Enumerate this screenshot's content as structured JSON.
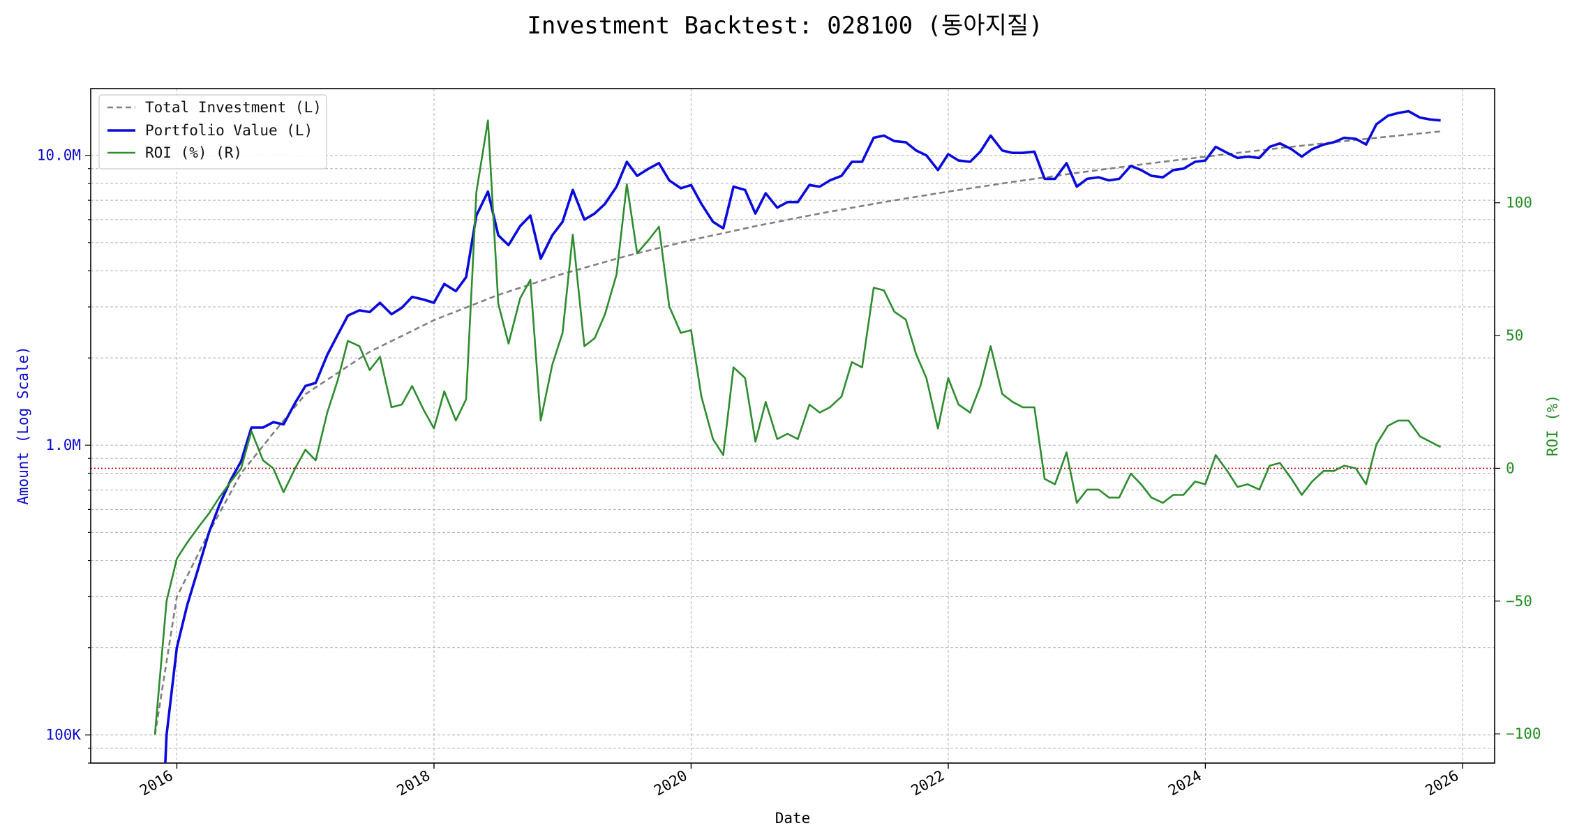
{
  "chart_data": {
    "type": "line",
    "title": "Investment Backtest: 028100 (동아지질)",
    "xlabel": "Date",
    "ylabel_left": "Amount (Log Scale)",
    "ylabel_right": "ROI (%)",
    "x_range": [
      2015.33,
      2026.25
    ],
    "left_axis": {
      "scale": "log",
      "range": [
        80000,
        17000000
      ],
      "tick_values": [
        100000,
        1000000,
        10000000
      ],
      "tick_labels": [
        "100K",
        "1.0M",
        "10.0M"
      ]
    },
    "right_axis": {
      "scale": "linear",
      "range": [
        -111,
        143
      ],
      "ticks": [
        -100,
        -50,
        0,
        50,
        100
      ],
      "tick_labels": [
        "−100",
        "−50",
        "0",
        "50",
        "100"
      ]
    },
    "x_ticks": [
      2016,
      2018,
      2020,
      2022,
      2024,
      2026
    ],
    "x_tick_labels": [
      "2016",
      "2018",
      "2020",
      "2022",
      "2024",
      "2026"
    ],
    "grid": true,
    "legend_position": "top-left",
    "reference_line": {
      "axis": "right",
      "value": 0,
      "style": "dotted",
      "color": "#cc0000"
    },
    "colors": {
      "investment": "#808080",
      "portfolio": "#0a0adc",
      "roi": "#2e8b2e",
      "left_axis": "#0a0acc",
      "right_axis": "#228b22"
    },
    "series": [
      {
        "name": "Total Investment (L)",
        "axis": "left",
        "style": "dashed",
        "points": [
          [
            2015.83,
            100000
          ],
          [
            2016.0,
            300000
          ],
          [
            2016.25,
            500000
          ],
          [
            2016.5,
            800000
          ],
          [
            2016.75,
            1100000
          ],
          [
            2017.0,
            1500000
          ],
          [
            2017.5,
            2100000
          ],
          [
            2018.0,
            2700000
          ],
          [
            2018.5,
            3300000
          ],
          [
            2019.0,
            3900000
          ],
          [
            2019.5,
            4500000
          ],
          [
            2020.0,
            5100000
          ],
          [
            2020.5,
            5700000
          ],
          [
            2021.0,
            6300000
          ],
          [
            2021.5,
            6900000
          ],
          [
            2022.0,
            7500000
          ],
          [
            2022.5,
            8100000
          ],
          [
            2023.0,
            8700000
          ],
          [
            2023.5,
            9300000
          ],
          [
            2024.0,
            9900000
          ],
          [
            2024.5,
            10500000
          ],
          [
            2025.0,
            11100000
          ],
          [
            2025.5,
            11700000
          ],
          [
            2025.83,
            12100000
          ]
        ]
      },
      {
        "name": "Portfolio Value (L)",
        "axis": "left",
        "style": "solid",
        "points": [
          [
            2015.91,
            60000
          ],
          [
            2015.92,
            100000
          ],
          [
            2016.0,
            200000
          ],
          [
            2016.08,
            280000
          ],
          [
            2016.17,
            380000
          ],
          [
            2016.25,
            500000
          ],
          [
            2016.33,
            620000
          ],
          [
            2016.42,
            760000
          ],
          [
            2016.5,
            880000
          ],
          [
            2016.58,
            1150000
          ],
          [
            2016.67,
            1150000
          ],
          [
            2016.75,
            1200000
          ],
          [
            2016.83,
            1180000
          ],
          [
            2016.92,
            1400000
          ],
          [
            2017.0,
            1600000
          ],
          [
            2017.08,
            1640000
          ],
          [
            2017.17,
            2050000
          ],
          [
            2017.25,
            2400000
          ],
          [
            2017.33,
            2800000
          ],
          [
            2017.42,
            2920000
          ],
          [
            2017.5,
            2880000
          ],
          [
            2017.58,
            3100000
          ],
          [
            2017.67,
            2830000
          ],
          [
            2017.75,
            2980000
          ],
          [
            2017.83,
            3250000
          ],
          [
            2017.92,
            3180000
          ],
          [
            2018.0,
            3100000
          ],
          [
            2018.08,
            3600000
          ],
          [
            2018.17,
            3400000
          ],
          [
            2018.25,
            3800000
          ],
          [
            2018.33,
            6200000
          ],
          [
            2018.42,
            7500000
          ],
          [
            2018.5,
            5300000
          ],
          [
            2018.58,
            4900000
          ],
          [
            2018.67,
            5700000
          ],
          [
            2018.75,
            6200000
          ],
          [
            2018.83,
            4400000
          ],
          [
            2018.92,
            5300000
          ],
          [
            2019.0,
            5900000
          ],
          [
            2019.08,
            7600000
          ],
          [
            2019.17,
            6000000
          ],
          [
            2019.25,
            6300000
          ],
          [
            2019.33,
            6800000
          ],
          [
            2019.42,
            7800000
          ],
          [
            2019.5,
            9500000
          ],
          [
            2019.58,
            8500000
          ],
          [
            2019.67,
            9000000
          ],
          [
            2019.75,
            9400000
          ],
          [
            2019.83,
            8200000
          ],
          [
            2019.92,
            7700000
          ],
          [
            2020.0,
            7900000
          ],
          [
            2020.08,
            6800000
          ],
          [
            2020.17,
            5900000
          ],
          [
            2020.25,
            5600000
          ],
          [
            2020.33,
            7800000
          ],
          [
            2020.42,
            7600000
          ],
          [
            2020.5,
            6300000
          ],
          [
            2020.58,
            7400000
          ],
          [
            2020.67,
            6600000
          ],
          [
            2020.75,
            6900000
          ],
          [
            2020.83,
            6900000
          ],
          [
            2020.92,
            7900000
          ],
          [
            2021.0,
            7800000
          ],
          [
            2021.08,
            8200000
          ],
          [
            2021.17,
            8500000
          ],
          [
            2021.25,
            9500000
          ],
          [
            2021.33,
            9500000
          ],
          [
            2021.42,
            11500000
          ],
          [
            2021.5,
            11700000
          ],
          [
            2021.58,
            11200000
          ],
          [
            2021.67,
            11100000
          ],
          [
            2021.75,
            10400000
          ],
          [
            2021.83,
            10000000
          ],
          [
            2021.92,
            8900000
          ],
          [
            2022.0,
            10100000
          ],
          [
            2022.08,
            9600000
          ],
          [
            2022.17,
            9500000
          ],
          [
            2022.25,
            10300000
          ],
          [
            2022.33,
            11700000
          ],
          [
            2022.42,
            10400000
          ],
          [
            2022.5,
            10200000
          ],
          [
            2022.58,
            10200000
          ],
          [
            2022.67,
            10300000
          ],
          [
            2022.75,
            8300000
          ],
          [
            2022.83,
            8300000
          ],
          [
            2022.92,
            9400000
          ],
          [
            2023.0,
            7800000
          ],
          [
            2023.08,
            8300000
          ],
          [
            2023.17,
            8400000
          ],
          [
            2023.25,
            8200000
          ],
          [
            2023.33,
            8300000
          ],
          [
            2023.42,
            9200000
          ],
          [
            2023.5,
            8900000
          ],
          [
            2023.58,
            8500000
          ],
          [
            2023.67,
            8400000
          ],
          [
            2023.75,
            8900000
          ],
          [
            2023.83,
            9000000
          ],
          [
            2023.92,
            9500000
          ],
          [
            2024.0,
            9600000
          ],
          [
            2024.08,
            10700000
          ],
          [
            2024.17,
            10200000
          ],
          [
            2024.25,
            9800000
          ],
          [
            2024.33,
            9900000
          ],
          [
            2024.42,
            9800000
          ],
          [
            2024.5,
            10700000
          ],
          [
            2024.58,
            11000000
          ],
          [
            2024.67,
            10500000
          ],
          [
            2024.75,
            9900000
          ],
          [
            2024.83,
            10500000
          ],
          [
            2024.92,
            10900000
          ],
          [
            2025.0,
            11100000
          ],
          [
            2025.08,
            11500000
          ],
          [
            2025.17,
            11400000
          ],
          [
            2025.25,
            10900000
          ],
          [
            2025.33,
            12800000
          ],
          [
            2025.42,
            13700000
          ],
          [
            2025.5,
            14000000
          ],
          [
            2025.58,
            14200000
          ],
          [
            2025.67,
            13500000
          ],
          [
            2025.75,
            13300000
          ],
          [
            2025.83,
            13200000
          ]
        ]
      },
      {
        "name": "ROI (%) (R)",
        "axis": "right",
        "style": "solid",
        "points": [
          [
            2015.83,
            -100
          ],
          [
            2015.92,
            -50
          ],
          [
            2016.0,
            -34
          ],
          [
            2016.08,
            -28
          ],
          [
            2016.17,
            -22
          ],
          [
            2016.25,
            -17
          ],
          [
            2016.33,
            -11
          ],
          [
            2016.42,
            -5
          ],
          [
            2016.5,
            0
          ],
          [
            2016.58,
            14
          ],
          [
            2016.67,
            3
          ],
          [
            2016.75,
            0
          ],
          [
            2016.83,
            -9
          ],
          [
            2016.92,
            0
          ],
          [
            2017.0,
            7
          ],
          [
            2017.08,
            3
          ],
          [
            2017.17,
            21
          ],
          [
            2017.25,
            33
          ],
          [
            2017.33,
            48
          ],
          [
            2017.42,
            46
          ],
          [
            2017.5,
            37
          ],
          [
            2017.58,
            42
          ],
          [
            2017.67,
            23
          ],
          [
            2017.75,
            24
          ],
          [
            2017.83,
            31
          ],
          [
            2017.92,
            22
          ],
          [
            2018.0,
            15
          ],
          [
            2018.08,
            29
          ],
          [
            2018.17,
            18
          ],
          [
            2018.25,
            26
          ],
          [
            2018.33,
            104
          ],
          [
            2018.42,
            131
          ],
          [
            2018.5,
            62
          ],
          [
            2018.58,
            47
          ],
          [
            2018.67,
            64
          ],
          [
            2018.75,
            71
          ],
          [
            2018.83,
            18
          ],
          [
            2018.92,
            39
          ],
          [
            2019.0,
            51
          ],
          [
            2019.08,
            88
          ],
          [
            2019.17,
            46
          ],
          [
            2019.25,
            49
          ],
          [
            2019.33,
            58
          ],
          [
            2019.42,
            73
          ],
          [
            2019.5,
            107
          ],
          [
            2019.58,
            81
          ],
          [
            2019.67,
            86
          ],
          [
            2019.75,
            91
          ],
          [
            2019.83,
            61
          ],
          [
            2019.92,
            51
          ],
          [
            2020.0,
            52
          ],
          [
            2020.08,
            27
          ],
          [
            2020.17,
            11
          ],
          [
            2020.25,
            5
          ],
          [
            2020.33,
            38
          ],
          [
            2020.42,
            34
          ],
          [
            2020.5,
            10
          ],
          [
            2020.58,
            25
          ],
          [
            2020.67,
            11
          ],
          [
            2020.75,
            13
          ],
          [
            2020.83,
            11
          ],
          [
            2020.92,
            24
          ],
          [
            2021.0,
            21
          ],
          [
            2021.08,
            23
          ],
          [
            2021.17,
            27
          ],
          [
            2021.25,
            40
          ],
          [
            2021.33,
            38
          ],
          [
            2021.42,
            68
          ],
          [
            2021.5,
            67
          ],
          [
            2021.58,
            59
          ],
          [
            2021.67,
            56
          ],
          [
            2021.75,
            43
          ],
          [
            2021.83,
            34
          ],
          [
            2021.92,
            15
          ],
          [
            2022.0,
            34
          ],
          [
            2022.08,
            24
          ],
          [
            2022.17,
            21
          ],
          [
            2022.25,
            31
          ],
          [
            2022.33,
            46
          ],
          [
            2022.42,
            28
          ],
          [
            2022.5,
            25
          ],
          [
            2022.58,
            23
          ],
          [
            2022.67,
            23
          ],
          [
            2022.75,
            -4
          ],
          [
            2022.83,
            -6
          ],
          [
            2022.92,
            6
          ],
          [
            2023.0,
            -13
          ],
          [
            2023.08,
            -8
          ],
          [
            2023.17,
            -8
          ],
          [
            2023.25,
            -11
          ],
          [
            2023.33,
            -11
          ],
          [
            2023.42,
            -2
          ],
          [
            2023.5,
            -6
          ],
          [
            2023.58,
            -11
          ],
          [
            2023.67,
            -13
          ],
          [
            2023.75,
            -10
          ],
          [
            2023.83,
            -10
          ],
          [
            2023.92,
            -5
          ],
          [
            2024.0,
            -6
          ],
          [
            2024.08,
            5
          ],
          [
            2024.17,
            -1
          ],
          [
            2024.25,
            -7
          ],
          [
            2024.33,
            -6
          ],
          [
            2024.42,
            -8
          ],
          [
            2024.5,
            1
          ],
          [
            2024.58,
            2
          ],
          [
            2024.67,
            -4
          ],
          [
            2024.75,
            -10
          ],
          [
            2024.83,
            -5
          ],
          [
            2024.92,
            -1
          ],
          [
            2025.0,
            -1
          ],
          [
            2025.08,
            1
          ],
          [
            2025.17,
            0
          ],
          [
            2025.25,
            -6
          ],
          [
            2025.33,
            9
          ],
          [
            2025.42,
            16
          ],
          [
            2025.5,
            18
          ],
          [
            2025.58,
            18
          ],
          [
            2025.67,
            12
          ],
          [
            2025.75,
            10
          ],
          [
            2025.83,
            8
          ]
        ]
      }
    ]
  }
}
